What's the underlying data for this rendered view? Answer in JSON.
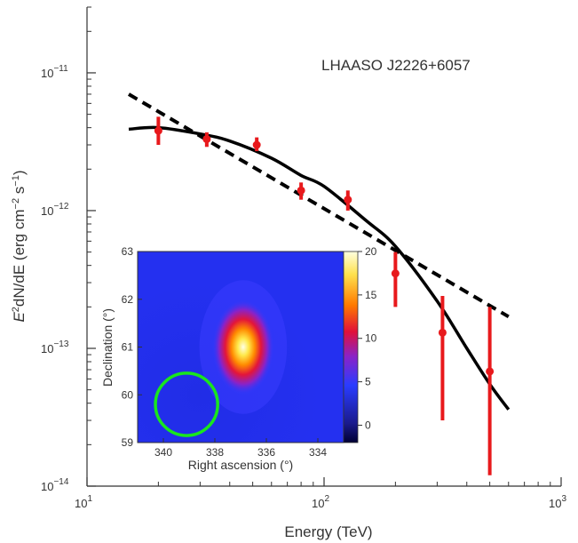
{
  "chart_data": [
    {
      "type": "scatter",
      "title": "",
      "annotation": "LHAASO J2226+6057",
      "xlabel": "Energy (TeV)",
      "ylabel_parts": {
        "base": "E",
        "sup1": "2",
        "mid": "dN/dE (erg cm",
        "sup2": "−2",
        "mid2": " s",
        "sup3": "−1",
        "end": ")"
      },
      "xscale": "log",
      "yscale": "log",
      "xlim": [
        10,
        1000
      ],
      "ylim": [
        1e-14,
        3e-11
      ],
      "x_ticks": [
        {
          "base": "10",
          "exp": "1"
        },
        {
          "base": "10",
          "exp": "2"
        },
        {
          "base": "10",
          "exp": "3"
        }
      ],
      "y_ticks": [
        {
          "base": "10",
          "exp": "−14"
        },
        {
          "base": "10",
          "exp": "−13"
        },
        {
          "base": "10",
          "exp": "−12"
        },
        {
          "base": "10",
          "exp": "−11"
        }
      ],
      "points": [
        {
          "x": 20,
          "y": 3.8e-12,
          "ylo": 3e-12,
          "yhi": 4.8e-12
        },
        {
          "x": 32,
          "y": 3.3e-12,
          "ylo": 2.9e-12,
          "yhi": 3.7e-12
        },
        {
          "x": 52,
          "y": 3e-12,
          "ylo": 2.7e-12,
          "yhi": 3.4e-12
        },
        {
          "x": 80,
          "y": 1.4e-12,
          "ylo": 1.2e-12,
          "yhi": 1.6e-12
        },
        {
          "x": 126,
          "y": 1.2e-12,
          "ylo": 1e-12,
          "yhi": 1.4e-12
        },
        {
          "x": 200,
          "y": 3.5e-13,
          "ylo": 2e-13,
          "yhi": 5e-13
        },
        {
          "x": 316,
          "y": 1.3e-13,
          "ylo": 3e-14,
          "yhi": 2.4e-13
        },
        {
          "x": 500,
          "y": 6.8e-14,
          "ylo": 1.2e-14,
          "yhi": 2e-13
        }
      ],
      "fit_curved": {
        "style": "solid",
        "points": [
          [
            15,
            3.9e-12
          ],
          [
            20,
            4e-12
          ],
          [
            30,
            3.6e-12
          ],
          [
            40,
            3.2e-12
          ],
          [
            60,
            2.4e-12
          ],
          [
            80,
            1.8e-12
          ],
          [
            100,
            1.5e-12
          ],
          [
            150,
            8.5e-13
          ],
          [
            200,
            5.5e-13
          ],
          [
            300,
            2.2e-13
          ],
          [
            400,
            1e-13
          ],
          [
            500,
            5.5e-14
          ],
          [
            600,
            3.6e-14
          ]
        ]
      },
      "fit_powerlaw": {
        "style": "dashed",
        "points": [
          [
            15,
            7e-12
          ],
          [
            600,
            1.7e-13
          ]
        ]
      },
      "colors": {
        "points": "#e8191c",
        "fit": "#000000"
      }
    },
    {
      "type": "heatmap",
      "xlabel": "Right ascension (°)",
      "ylabel": "Declination (°)",
      "xlim": [
        341,
        333
      ],
      "ylim": [
        59,
        63
      ],
      "x_ticks": [
        "334",
        "336",
        "338",
        "340"
      ],
      "y_ticks": [
        "59",
        "60",
        "61",
        "62",
        "63"
      ],
      "x_tick_values": [
        334,
        336,
        338,
        340
      ],
      "y_tick_values": [
        59,
        60,
        61,
        62,
        63
      ],
      "colorbar_ticks": [
        "0",
        "5",
        "10",
        "15",
        "20"
      ],
      "colorbar_values": [
        0,
        5,
        10,
        15,
        20
      ],
      "colorbar_range": [
        -2,
        20
      ],
      "source": {
        "ra": 336.9,
        "dec": 61.0,
        "peak": 20
      },
      "marker_circle": {
        "ra": 339.1,
        "dec": 59.8,
        "radius_deg": 0.45,
        "color": "#19e61e"
      },
      "colormap": [
        "#000033",
        "#1a1a8c",
        "#2a3cff",
        "#8a22c8",
        "#e0103a",
        "#ff7a00",
        "#ffe14d",
        "#ffffe0"
      ]
    }
  ]
}
